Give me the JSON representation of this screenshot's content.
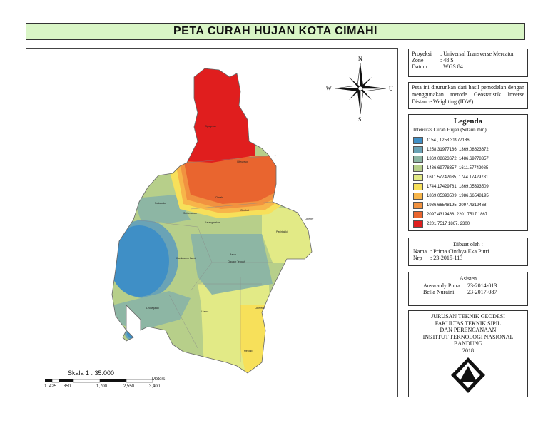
{
  "title": "PETA CURAH HUJAN KOTA CIMAHI",
  "projection": {
    "proyeksi_label": "Proyeksi",
    "proyeksi_value": ": Universal Transverse Mercator",
    "zone_label": "Zone",
    "zone_value": ": 48 S",
    "datum_label": "Datum",
    "datum_value": ": WGS 84"
  },
  "note": "Peta ini diturunkan dari hasil pemodelan dengan menggunakan metode Geostatistik Inverse Distance Weighting (IDW)",
  "compass": {
    "n": "N",
    "s": "S",
    "e": "U",
    "w": "W"
  },
  "legend": {
    "title": "Legenda",
    "subtitle": "Intensitas Curah Hujan (Setaun mm)",
    "items": [
      {
        "label": "1154 , 1258.31977186",
        "color": "#3f8fc6"
      },
      {
        "label": "1258.31977186, 1369.08623672",
        "color": "#6aa3b6"
      },
      {
        "label": "1369.08623672, 1486.69778357",
        "color": "#8db6a4"
      },
      {
        "label": "1486.69778357, 1611.57742085",
        "color": "#b7cf8a"
      },
      {
        "label": "1611.57742085, 1744.17429781",
        "color": "#e2ea86"
      },
      {
        "label": "1744.17429781, 1869.05393509",
        "color": "#f7e05a"
      },
      {
        "label": "1869.05393509, 1986.66548195",
        "color": "#f7b54a"
      },
      {
        "label": "1986.66548195, 2097.4319468",
        "color": "#f19240"
      },
      {
        "label": "2097.4319468, 2201.7517 1867",
        "color": "#e9652f"
      },
      {
        "label": "2201.7517 1867, 2300",
        "color": "#e01e1e"
      }
    ]
  },
  "made_by": {
    "heading": "Dibuat oleh :",
    "nama_label": "Nama",
    "nama_value": ": Prima Cinthya Eka Putri",
    "nrp_label": "Nrp",
    "nrp_value": ": 23-2015-113"
  },
  "asisten": {
    "heading": "Asisten",
    "rows": [
      {
        "name": "Answardy Putra",
        "id": "23-2014-013"
      },
      {
        "name": "Bella Nuraini",
        "id": "23-2017-087"
      }
    ]
  },
  "institution": {
    "lines": [
      "JURUSAN TEKNIK GEODESI",
      "FAKULTAS TEKNIK SIPIL",
      "DAN PERENCANAAN",
      "INSTITUT TEKNOLOGI NASIONAL",
      "BANDUNG",
      "2018"
    ]
  },
  "scale": {
    "label": "Skala 1 : 35.000",
    "ticks": [
      "0",
      "425",
      "850",
      "1,700",
      "2,550",
      "3,400"
    ],
    "unit": "Meters"
  },
  "places": [
    "Cipageran",
    "Citeureup",
    "Cimahi",
    "Cibabat",
    "Pasirkaliki",
    "Setiamanah",
    "Karangmekar",
    "Padasuka",
    "Cibeber",
    "Baros",
    "Cigugur Tengah",
    "Cibereum",
    "Utama",
    "Melong",
    "Leuwigajah",
    "Karakrannn Barat"
  ]
}
